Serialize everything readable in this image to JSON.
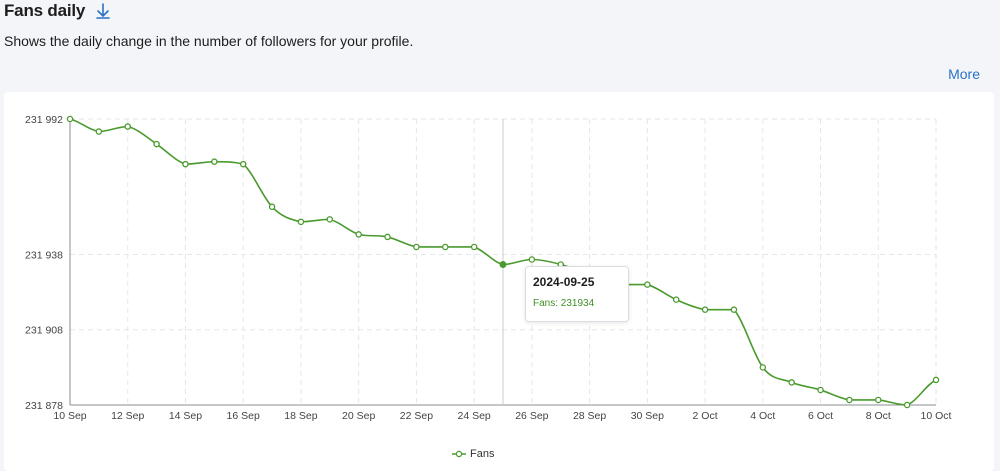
{
  "header": {
    "title": "Fans daily",
    "subtitle": "Shows the daily change in the number of followers for your profile.",
    "download_icon": "download-arrow-icon",
    "more_label": "More"
  },
  "colors": {
    "series": "#4a9a2e",
    "link": "#2a72c4",
    "grid": "#e4e6ea",
    "crosshair": "#c8cbd0"
  },
  "tooltip": {
    "date": "2024-09-25",
    "series_label": "Fans",
    "value": "231934"
  },
  "chart_data": {
    "type": "line",
    "title": "",
    "xlabel": "",
    "ylabel": "",
    "x": [
      "10 Sep",
      "11 Sep",
      "12 Sep",
      "13 Sep",
      "14 Sep",
      "15 Sep",
      "16 Sep",
      "17 Sep",
      "18 Sep",
      "19 Sep",
      "20 Sep",
      "21 Sep",
      "22 Sep",
      "23 Sep",
      "24 Sep",
      "25 Sep",
      "26 Sep",
      "27 Sep",
      "28 Sep",
      "29 Sep",
      "30 Sep",
      "1 Oct",
      "2 Oct",
      "3 Oct",
      "4 Oct",
      "5 Oct",
      "6 Oct",
      "7 Oct",
      "8 Oct",
      "9 Oct",
      "10 Oct"
    ],
    "x_tick_labels": [
      "10 Sep",
      "12 Sep",
      "14 Sep",
      "16 Sep",
      "18 Sep",
      "20 Sep",
      "22 Sep",
      "24 Sep",
      "26 Sep",
      "28 Sep",
      "30 Sep",
      "2 Oct",
      "4 Oct",
      "6 Oct",
      "8 Oct",
      "10 Oct"
    ],
    "y_tick_values": [
      231878,
      231908,
      231938,
      231992
    ],
    "y_tick_labels": [
      "231 878",
      "231 908",
      "231 938",
      "231 992"
    ],
    "ylim": [
      231878,
      231992
    ],
    "grid": true,
    "legend": "bottom-center",
    "series": [
      {
        "name": "Fans",
        "values": [
          231992,
          231987,
          231989,
          231982,
          231974,
          231975,
          231974,
          231957,
          231951,
          231952,
          231946,
          231945,
          231941,
          231941,
          231941,
          231934,
          231936,
          231934,
          231930,
          231926,
          231926,
          231920,
          231916,
          231916,
          231893,
          231887,
          231884,
          231880,
          231880,
          231878,
          231888
        ]
      }
    ]
  }
}
